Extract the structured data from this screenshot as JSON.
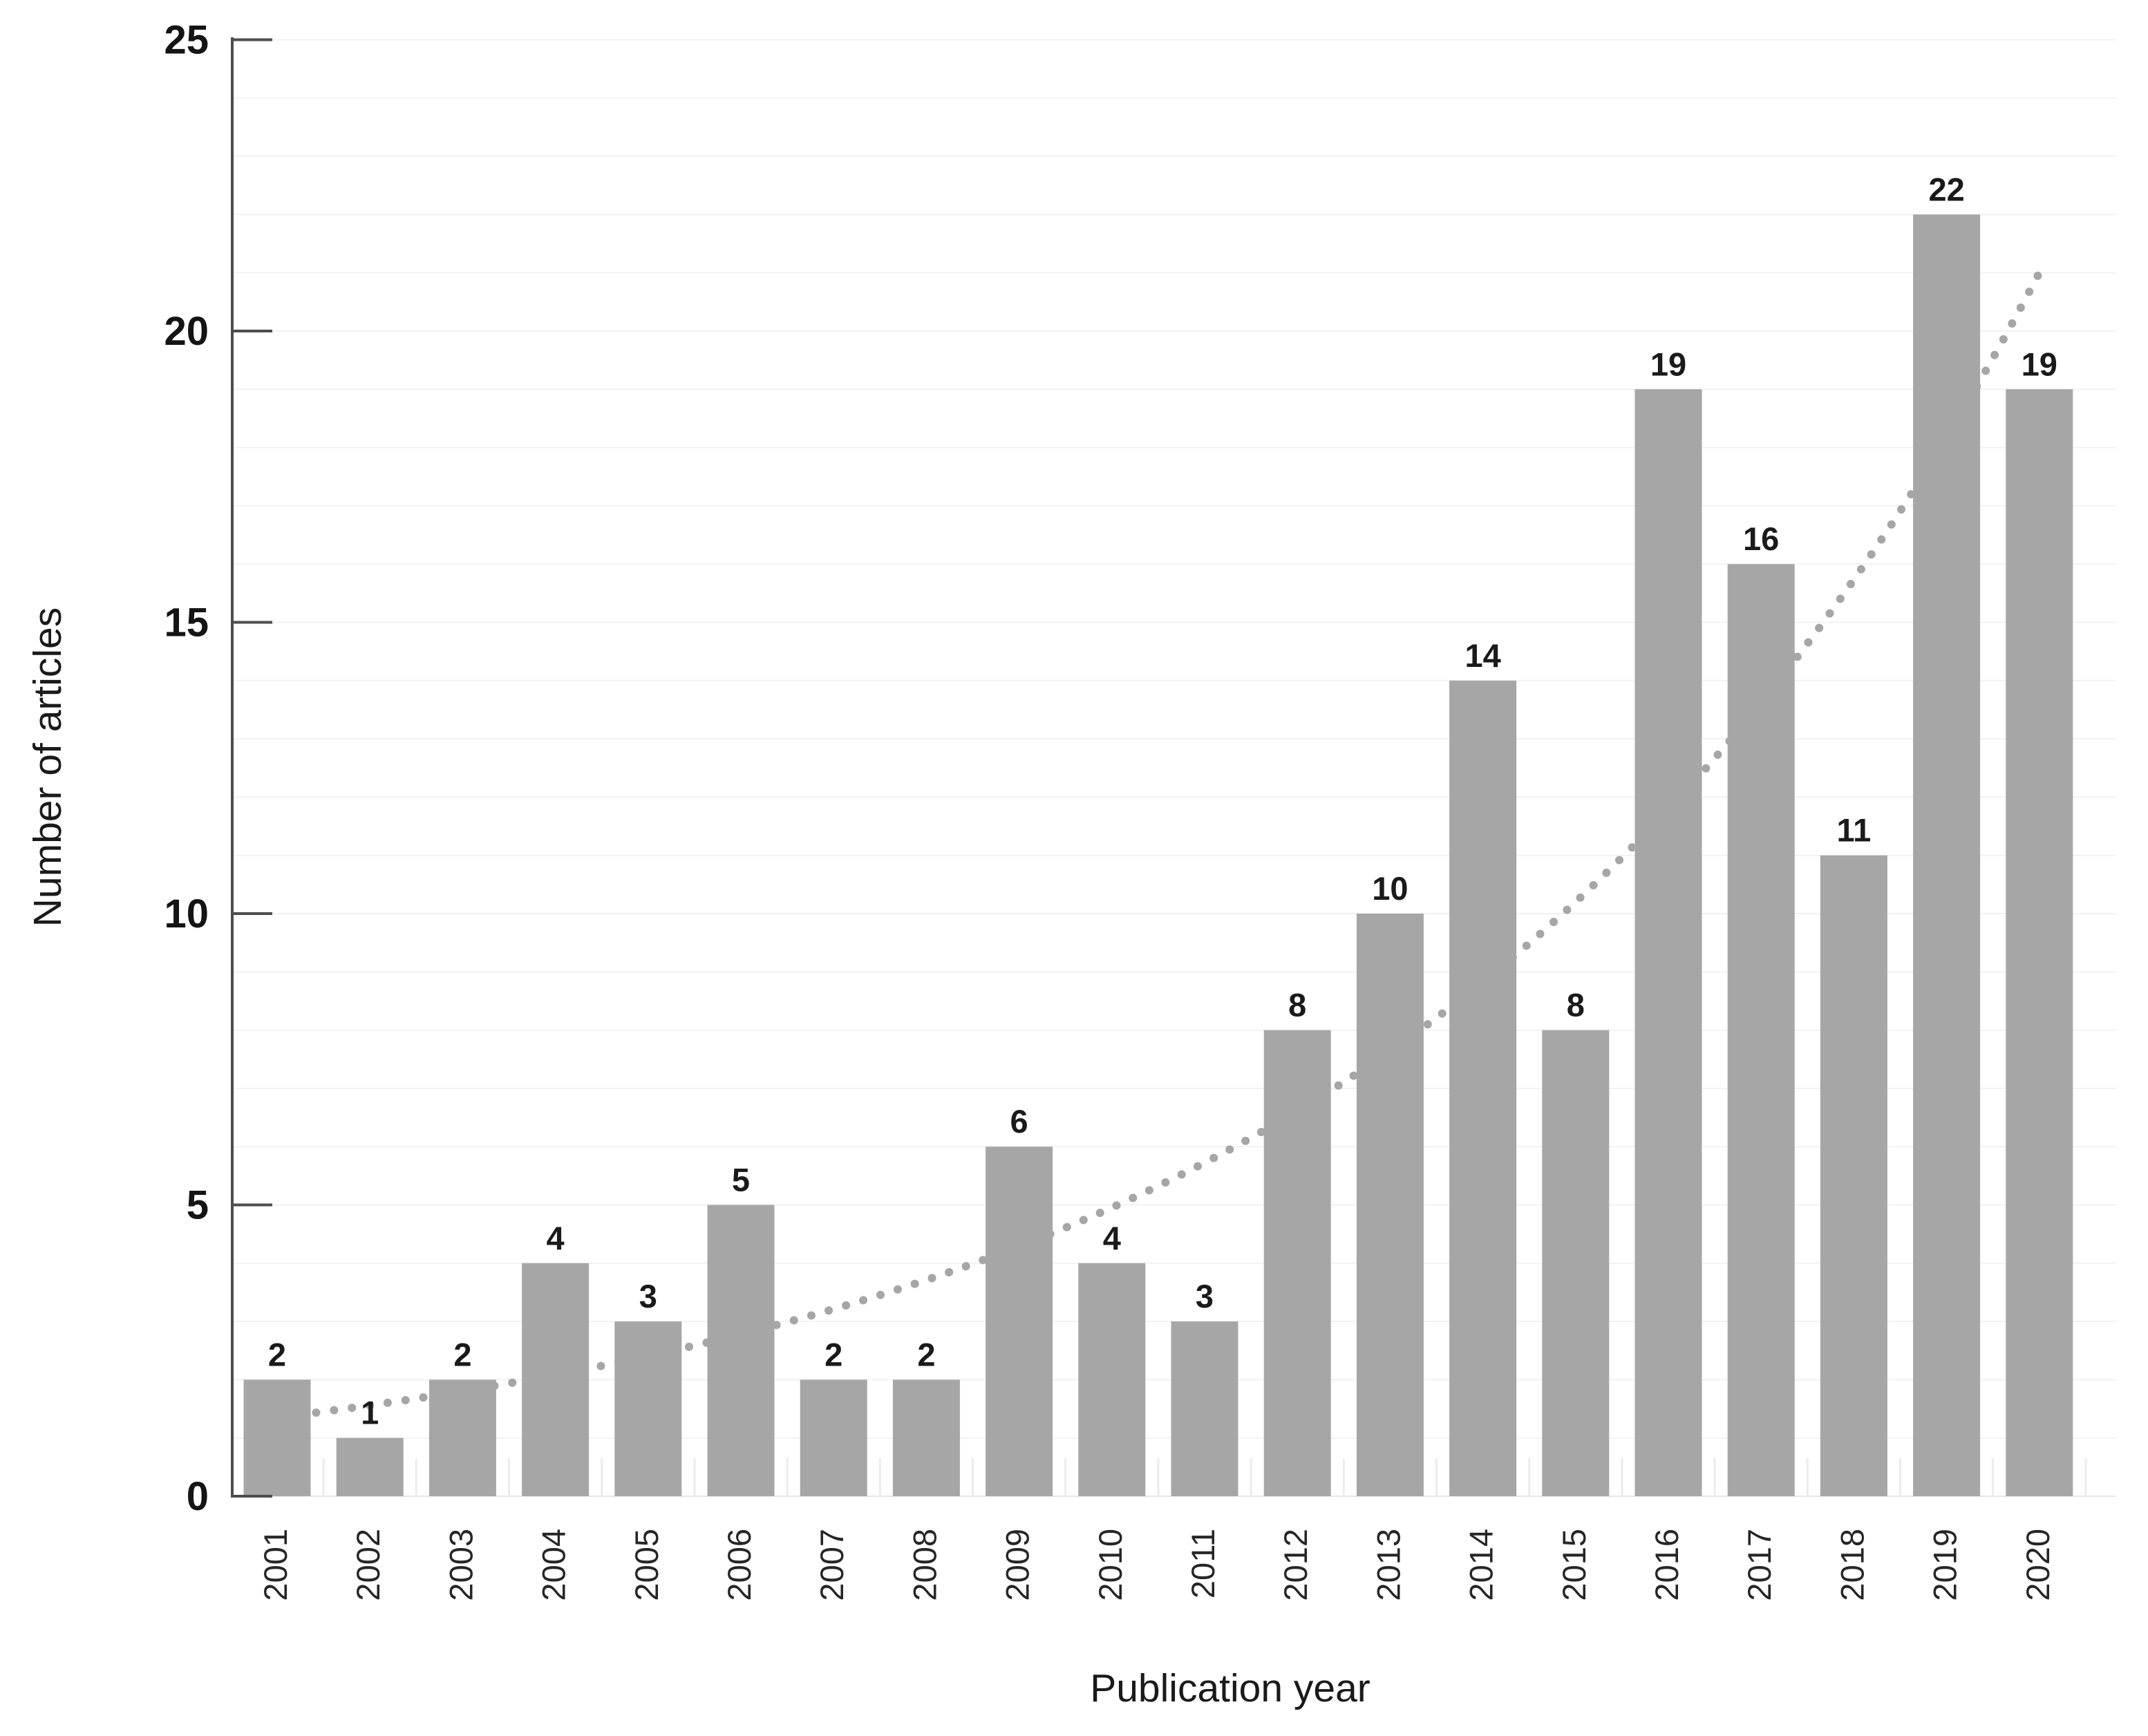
{
  "chart_data": {
    "type": "bar",
    "title": "",
    "xlabel": "Publication year",
    "ylabel": "Number of articles",
    "categories": [
      "2001",
      "2002",
      "2003",
      "2004",
      "2005",
      "2006",
      "2007",
      "2008",
      "2009",
      "2010",
      "2011",
      "2012",
      "2013",
      "2014",
      "2015",
      "2016",
      "2017",
      "2018",
      "2019",
      "2020"
    ],
    "values": [
      2,
      1,
      2,
      4,
      3,
      5,
      2,
      2,
      6,
      4,
      3,
      8,
      10,
      14,
      8,
      19,
      16,
      11,
      22,
      19
    ],
    "bar_value_labels_shown": true,
    "ylim": [
      0,
      25
    ],
    "yticks": [
      0,
      5,
      10,
      15,
      20,
      25
    ],
    "minor_gridline_interval": 1,
    "grid": "horizontal-minor",
    "legend": "none",
    "trendline": {
      "style": "dotted",
      "fit": "exponential",
      "start_value": 1.35,
      "end_value": 21.0
    },
    "colors": {
      "bar": "#a6a6a6",
      "trend_dots": "#a6a6a6",
      "gridline": "#f2f2f2",
      "baseline": "#e6e6e6",
      "category_tick": "#ececec",
      "axis": "#4d4d4d",
      "tick_label": "#141414",
      "bar_label": "#1a1a1a",
      "year_label": "#262626",
      "axis_title": "#1a1a1a",
      "background": "#ffffff"
    }
  }
}
